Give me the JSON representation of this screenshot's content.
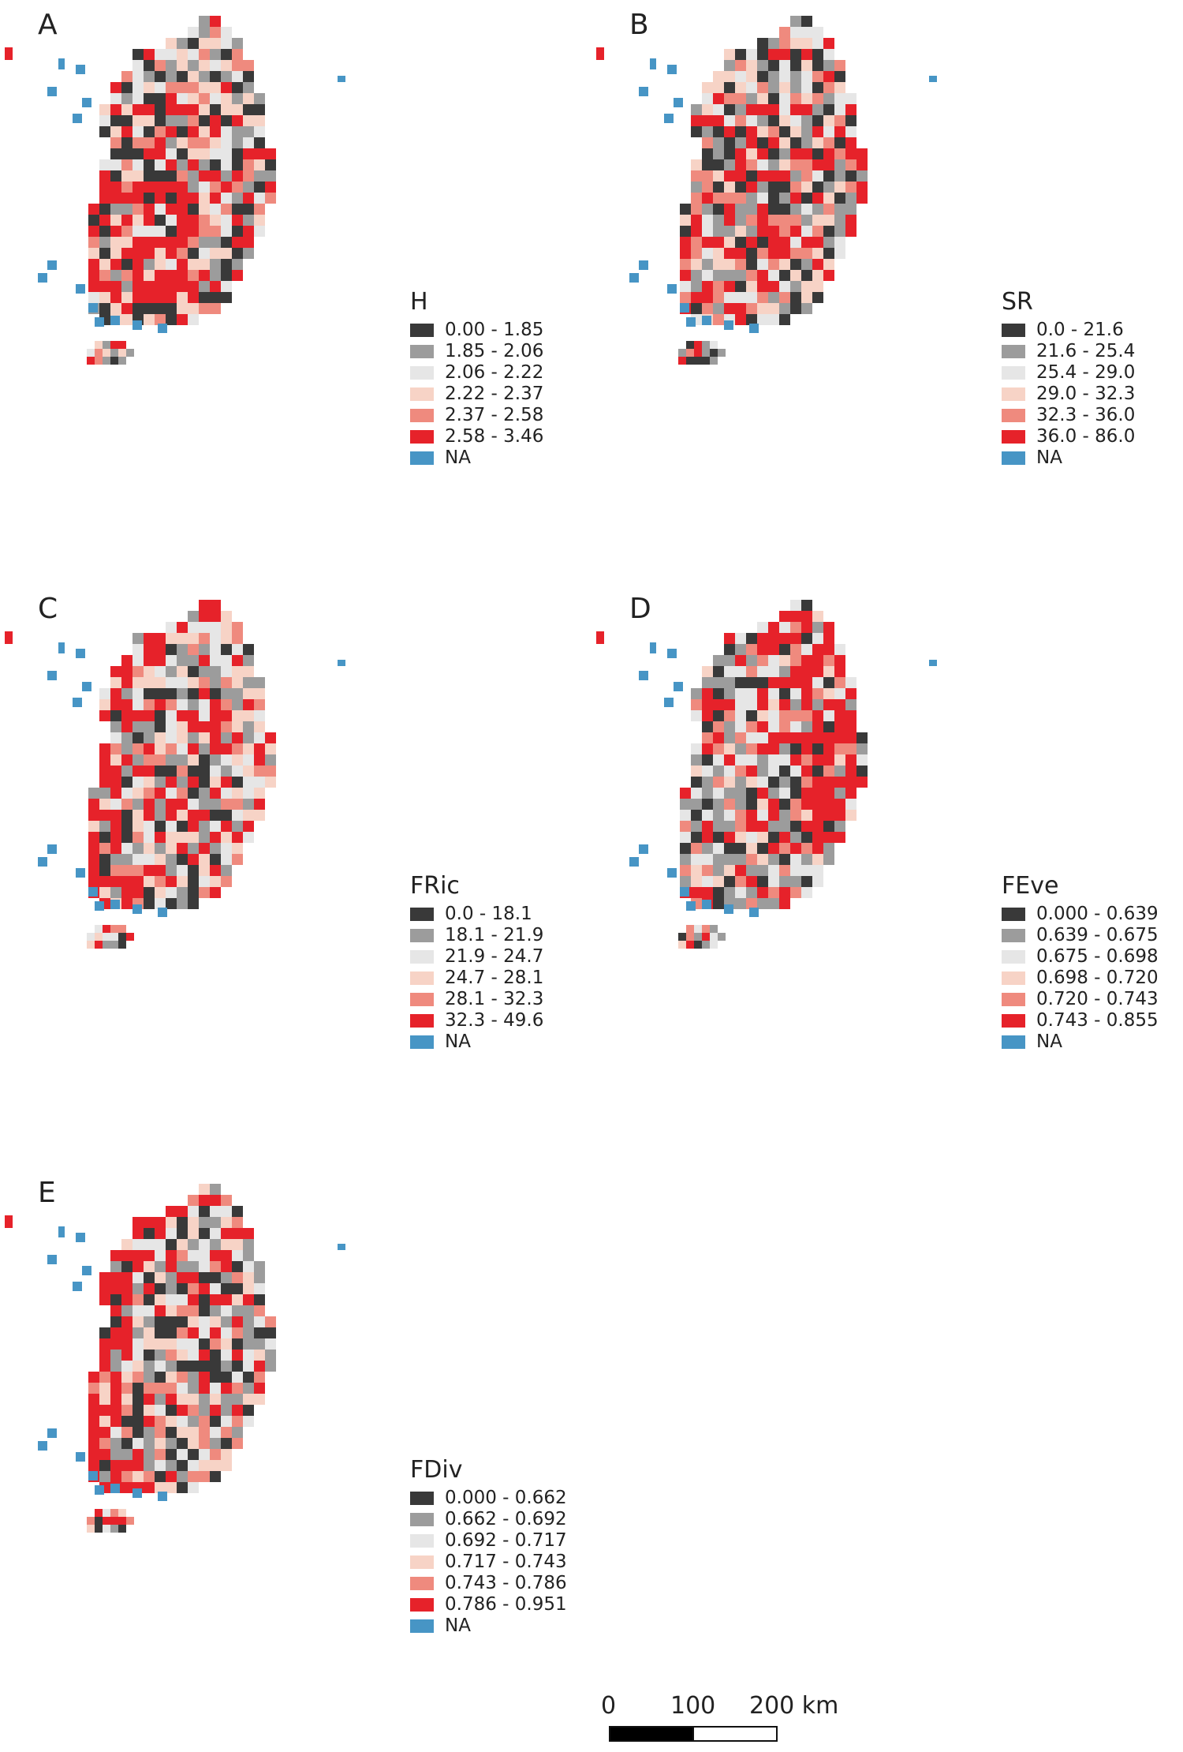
{
  "colors": {
    "c1": "#393939",
    "c2": "#9c9c9c",
    "c3": "#e6e6e6",
    "c4": "#f7d3c6",
    "c5": "#ef8a7e",
    "c6": "#e6222a",
    "na": "#4795c5"
  },
  "panels": [
    {
      "label": "A",
      "legend": {
        "title": "H",
        "items": [
          {
            "text": "0.00 - 1.85",
            "color": "#393939"
          },
          {
            "text": "1.85 - 2.06",
            "color": "#9c9c9c"
          },
          {
            "text": "2.06 - 2.22",
            "color": "#e6e6e6"
          },
          {
            "text": "2.22 - 2.37",
            "color": "#f7d3c6"
          },
          {
            "text": "2.37 - 2.58",
            "color": "#ef8a7e"
          },
          {
            "text": "2.58 - 3.46",
            "color": "#e6222a"
          },
          {
            "text": "NA",
            "color": "#4795c5"
          }
        ]
      }
    },
    {
      "label": "B",
      "legend": {
        "title": "SR",
        "items": [
          {
            "text": "0.0 - 21.6",
            "color": "#393939"
          },
          {
            "text": "21.6 - 25.4",
            "color": "#9c9c9c"
          },
          {
            "text": "25.4 - 29.0",
            "color": "#e6e6e6"
          },
          {
            "text": "29.0 - 32.3",
            "color": "#f7d3c6"
          },
          {
            "text": "32.3 - 36.0",
            "color": "#ef8a7e"
          },
          {
            "text": "36.0 - 86.0",
            "color": "#e6222a"
          },
          {
            "text": "NA",
            "color": "#4795c5"
          }
        ]
      }
    },
    {
      "label": "C",
      "legend": {
        "title": "FRic",
        "items": [
          {
            "text": "0.0 - 18.1",
            "color": "#393939"
          },
          {
            "text": "18.1 - 21.9",
            "color": "#9c9c9c"
          },
          {
            "text": "21.9 - 24.7",
            "color": "#e6e6e6"
          },
          {
            "text": "24.7 - 28.1",
            "color": "#f7d3c6"
          },
          {
            "text": "28.1 - 32.3",
            "color": "#ef8a7e"
          },
          {
            "text": "32.3 - 49.6",
            "color": "#e6222a"
          },
          {
            "text": "NA",
            "color": "#4795c5"
          }
        ]
      }
    },
    {
      "label": "D",
      "legend": {
        "title": "FEve",
        "items": [
          {
            "text": "0.000 - 0.639",
            "color": "#393939"
          },
          {
            "text": "0.639 - 0.675",
            "color": "#9c9c9c"
          },
          {
            "text": "0.675 - 0.698",
            "color": "#e6e6e6"
          },
          {
            "text": "0.698 - 0.720",
            "color": "#f7d3c6"
          },
          {
            "text": "0.720 - 0.743",
            "color": "#ef8a7e"
          },
          {
            "text": "0.743 - 0.855",
            "color": "#e6222a"
          },
          {
            "text": "NA",
            "color": "#4795c5"
          }
        ]
      }
    },
    {
      "label": "E",
      "legend": {
        "title": "FDiv",
        "items": [
          {
            "text": "0.000 - 0.662",
            "color": "#393939"
          },
          {
            "text": "0.662 - 0.692",
            "color": "#9c9c9c"
          },
          {
            "text": "0.692 - 0.717",
            "color": "#e6e6e6"
          },
          {
            "text": "0.717 - 0.743",
            "color": "#f7d3c6"
          },
          {
            "text": "0.743 - 0.786",
            "color": "#ef8a7e"
          },
          {
            "text": "0.786 - 0.951",
            "color": "#e6222a"
          },
          {
            "text": "NA",
            "color": "#4795c5"
          }
        ]
      }
    }
  ],
  "scale_bar": {
    "labels": [
      "0",
      "100",
      "200 km"
    ]
  }
}
